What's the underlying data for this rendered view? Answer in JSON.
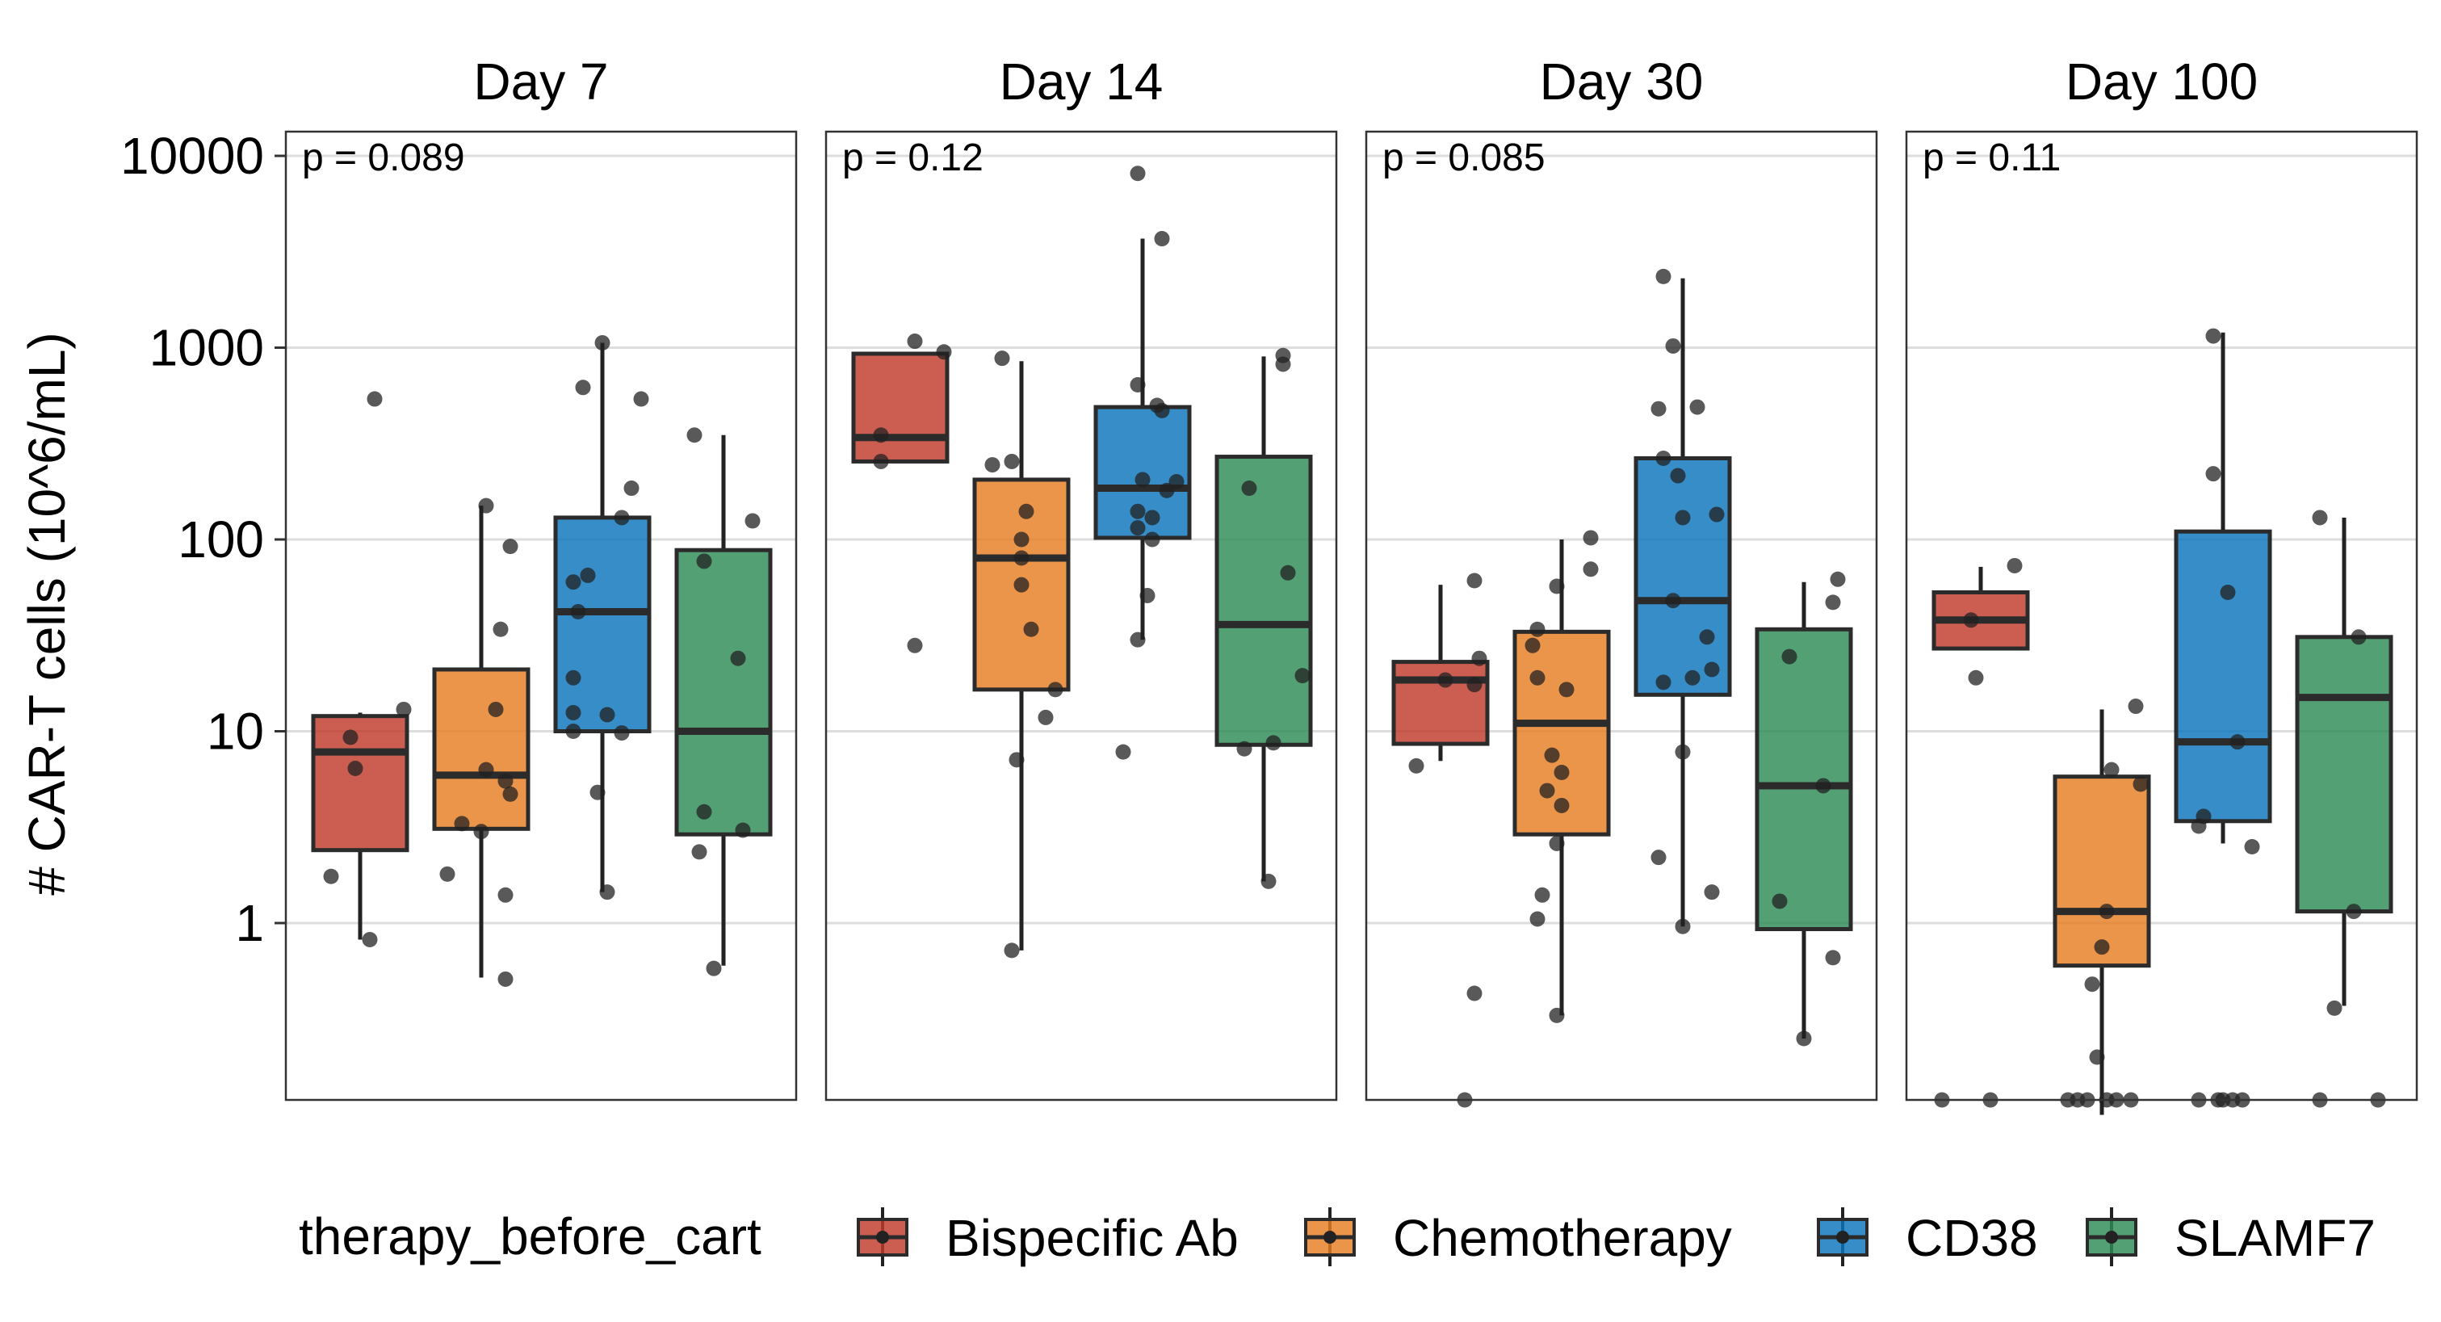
{
  "chart_data": {
    "type": "box",
    "ylabel": "# CAR-T cells (10^6/mL)",
    "yscale": "log10",
    "ylim": [
      0.1,
      15000
    ],
    "yticks": [
      1,
      10,
      100,
      1000,
      10000
    ],
    "ytick_labels": [
      "1",
      "10",
      "100",
      "1000",
      "10000"
    ],
    "grid": true,
    "legend": {
      "title": "therapy_before_cart",
      "position": "bottom",
      "entries": [
        "Bispecific Ab",
        "Chemotherapy",
        "CD38",
        "SLAMF7"
      ]
    },
    "colors": {
      "Bispecific Ab": "#C0392B",
      "Chemotherapy": "#E67E22",
      "CD38": "#0A74BB",
      "SLAMF7": "#2E8B57"
    },
    "groups": [
      "Bispecific Ab",
      "Chemotherapy",
      "CD38",
      "SLAMF7"
    ],
    "panels": [
      {
        "title": "Day 7",
        "p_label": "p = 0.089",
        "boxes": [
          {
            "group": "Bispecific Ab",
            "q1": 2.4,
            "median": 7.8,
            "q3": 12,
            "whisker_low": 0.82,
            "whisker_high": 12.5,
            "points": [
              {
                "x": 0.9,
                "y": 13
              },
              {
                "x": -0.2,
                "y": 9.3
              },
              {
                "x": -0.1,
                "y": 6.4
              },
              {
                "x": -0.6,
                "y": 1.75
              },
              {
                "x": 0.2,
                "y": 0.82
              },
              {
                "x": 0.3,
                "y": 540
              }
            ]
          },
          {
            "group": "Chemotherapy",
            "q1": 3.1,
            "median": 5.9,
            "q3": 21,
            "whisker_low": 0.52,
            "whisker_high": 150,
            "points": [
              {
                "x": 0.1,
                "y": 150
              },
              {
                "x": 0.6,
                "y": 92
              },
              {
                "x": 0.4,
                "y": 34
              },
              {
                "x": 0.3,
                "y": 13
              },
              {
                "x": 0.1,
                "y": 6.3
              },
              {
                "x": 0.5,
                "y": 5.5
              },
              {
                "x": 0.6,
                "y": 4.7
              },
              {
                "x": -0.4,
                "y": 3.3
              },
              {
                "x": 0.0,
                "y": 3.0
              },
              {
                "x": -0.7,
                "y": 1.8
              },
              {
                "x": 0.5,
                "y": 1.4
              },
              {
                "x": 0.5,
                "y": 0.51
              }
            ]
          },
          {
            "group": "CD38",
            "q1": 10,
            "median": 42,
            "q3": 130,
            "whisker_low": 1.45,
            "whisker_high": 1060,
            "points": [
              {
                "x": 0.0,
                "y": 1060
              },
              {
                "x": -0.4,
                "y": 620
              },
              {
                "x": 0.8,
                "y": 540
              },
              {
                "x": 0.6,
                "y": 185
              },
              {
                "x": 0.4,
                "y": 130
              },
              {
                "x": -0.3,
                "y": 65
              },
              {
                "x": -0.6,
                "y": 60
              },
              {
                "x": -0.5,
                "y": 42
              },
              {
                "x": -0.6,
                "y": 19
              },
              {
                "x": -0.6,
                "y": 12.5
              },
              {
                "x": 0.1,
                "y": 12.2
              },
              {
                "x": -0.6,
                "y": 10
              },
              {
                "x": 0.4,
                "y": 9.8
              },
              {
                "x": -0.1,
                "y": 4.8
              },
              {
                "x": 0.1,
                "y": 1.45
              }
            ]
          },
          {
            "group": "SLAMF7",
            "q1": 2.9,
            "median": 10,
            "q3": 88,
            "whisker_low": 0.6,
            "whisker_high": 350,
            "points": [
              {
                "x": -0.6,
                "y": 350
              },
              {
                "x": 0.6,
                "y": 125
              },
              {
                "x": -0.4,
                "y": 77
              },
              {
                "x": 0.3,
                "y": 24
              },
              {
                "x": -0.4,
                "y": 3.8
              },
              {
                "x": 0.4,
                "y": 3.05
              },
              {
                "x": -0.5,
                "y": 2.35
              },
              {
                "x": -0.2,
                "y": 0.58
              }
            ]
          }
        ]
      },
      {
        "title": "Day 14",
        "p_label": "p = 0.12",
        "boxes": [
          {
            "group": "Bispecific Ab",
            "q1": 255,
            "median": 340,
            "q3": 930,
            "whisker_low": 255,
            "whisker_high": 930,
            "points": [
              {
                "x": 0.3,
                "y": 1080
              },
              {
                "x": 0.9,
                "y": 950
              },
              {
                "x": -0.4,
                "y": 350
              },
              {
                "x": -0.4,
                "y": 255
              },
              {
                "x": 0.3,
                "y": 28
              }
            ]
          },
          {
            "group": "Chemotherapy",
            "q1": 16.5,
            "median": 80,
            "q3": 205,
            "whisker_low": 0.72,
            "whisker_high": 850,
            "points": [
              {
                "x": -0.4,
                "y": 880
              },
              {
                "x": -0.6,
                "y": 245
              },
              {
                "x": -0.2,
                "y": 255
              },
              {
                "x": 0.1,
                "y": 140
              },
              {
                "x": 0.0,
                "y": 100
              },
              {
                "x": 0.0,
                "y": 80
              },
              {
                "x": 0.0,
                "y": 58
              },
              {
                "x": 0.2,
                "y": 34
              },
              {
                "x": 0.7,
                "y": 16.5
              },
              {
                "x": 0.5,
                "y": 11.8
              },
              {
                "x": -0.1,
                "y": 7.1
              },
              {
                "x": -0.2,
                "y": 0.72
              }
            ]
          },
          {
            "group": "CD38",
            "q1": 102,
            "median": 185,
            "q3": 490,
            "whisker_low": 30,
            "whisker_high": 3700,
            "points": [
              {
                "x": -0.1,
                "y": 8100
              },
              {
                "x": 0.4,
                "y": 3700
              },
              {
                "x": -0.1,
                "y": 640
              },
              {
                "x": 0.3,
                "y": 500
              },
              {
                "x": 0.4,
                "y": 470
              },
              {
                "x": 0.0,
                "y": 205
              },
              {
                "x": 0.7,
                "y": 200
              },
              {
                "x": 0.5,
                "y": 180
              },
              {
                "x": -0.1,
                "y": 140
              },
              {
                "x": 0.2,
                "y": 130
              },
              {
                "x": -0.1,
                "y": 115
              },
              {
                "x": 0.2,
                "y": 100
              },
              {
                "x": 0.1,
                "y": 51
              },
              {
                "x": -0.1,
                "y": 30
              },
              {
                "x": -0.4,
                "y": 7.8
              }
            ]
          },
          {
            "group": "SLAMF7",
            "q1": 8.5,
            "median": 36,
            "q3": 270,
            "whisker_low": 1.65,
            "whisker_high": 900,
            "points": [
              {
                "x": 0.4,
                "y": 910
              },
              {
                "x": 0.4,
                "y": 820
              },
              {
                "x": -0.3,
                "y": 185
              },
              {
                "x": 0.5,
                "y": 67
              },
              {
                "x": 0.8,
                "y": 19.5
              },
              {
                "x": 0.2,
                "y": 8.7
              },
              {
                "x": -0.4,
                "y": 8.1
              },
              {
                "x": 0.1,
                "y": 1.65
              }
            ]
          }
        ]
      },
      {
        "title": "Day 30",
        "p_label": "p = 0.085",
        "boxes": [
          {
            "group": "Bispecific Ab",
            "q1": 8.6,
            "median": 18.5,
            "q3": 23,
            "whisker_low": 7,
            "whisker_high": 58,
            "points": [
              {
                "x": 0.7,
                "y": 61
              },
              {
                "x": 0.8,
                "y": 24
              },
              {
                "x": 0.1,
                "y": 18.5
              },
              {
                "x": 0.7,
                "y": 17.5
              },
              {
                "x": -0.5,
                "y": 6.6
              },
              {
                "x": 0.7,
                "y": 0.43
              },
              {
                "x": 0.5,
                "y": 0.1
              }
            ]
          },
          {
            "group": "Chemotherapy",
            "q1": 2.9,
            "median": 11,
            "q3": 33,
            "whisker_low": 0.33,
            "whisker_high": 100,
            "points": [
              {
                "x": 0.6,
                "y": 102
              },
              {
                "x": 0.6,
                "y": 70
              },
              {
                "x": -0.1,
                "y": 57
              },
              {
                "x": -0.5,
                "y": 34
              },
              {
                "x": -0.6,
                "y": 28
              },
              {
                "x": -0.5,
                "y": 19
              },
              {
                "x": 0.1,
                "y": 16.5
              },
              {
                "x": -0.2,
                "y": 7.5
              },
              {
                "x": 0.0,
                "y": 6.1
              },
              {
                "x": -0.3,
                "y": 4.9
              },
              {
                "x": 0.0,
                "y": 4.1
              },
              {
                "x": -0.1,
                "y": 2.6
              },
              {
                "x": -0.4,
                "y": 1.4
              },
              {
                "x": -0.5,
                "y": 1.05
              },
              {
                "x": -0.1,
                "y": 0.33
              }
            ]
          },
          {
            "group": "CD38",
            "q1": 15.5,
            "median": 48,
            "q3": 265,
            "whisker_low": 0.96,
            "whisker_high": 2300,
            "points": [
              {
                "x": -0.4,
                "y": 2350
              },
              {
                "x": -0.2,
                "y": 1020
              },
              {
                "x": -0.5,
                "y": 480
              },
              {
                "x": 0.3,
                "y": 490
              },
              {
                "x": -0.4,
                "y": 265
              },
              {
                "x": -0.1,
                "y": 215
              },
              {
                "x": 0.0,
                "y": 130
              },
              {
                "x": 0.7,
                "y": 135
              },
              {
                "x": -0.2,
                "y": 48
              },
              {
                "x": 0.5,
                "y": 31
              },
              {
                "x": 0.6,
                "y": 21
              },
              {
                "x": 0.2,
                "y": 19
              },
              {
                "x": -0.4,
                "y": 18
              },
              {
                "x": 0.0,
                "y": 7.8
              },
              {
                "x": -0.5,
                "y": 2.2
              },
              {
                "x": 0.6,
                "y": 1.45
              },
              {
                "x": 0.0,
                "y": 0.96
              }
            ]
          },
          {
            "group": "SLAMF7",
            "q1": 0.93,
            "median": 5.2,
            "q3": 34,
            "whisker_low": 0.25,
            "whisker_high": 60,
            "points": [
              {
                "x": 0.7,
                "y": 62
              },
              {
                "x": 0.6,
                "y": 47
              },
              {
                "x": -0.3,
                "y": 24.5
              },
              {
                "x": 0.4,
                "y": 5.2
              },
              {
                "x": -0.5,
                "y": 1.3
              },
              {
                "x": 0.6,
                "y": 0.66
              },
              {
                "x": 0.0,
                "y": 0.25
              }
            ]
          }
        ]
      },
      {
        "title": "Day 100",
        "p_label": "p = 0.11",
        "boxes": [
          {
            "group": "Bispecific Ab",
            "q1": 27,
            "median": 38,
            "q3": 53,
            "whisker_low": 27,
            "whisker_high": 72,
            "points": [
              {
                "x": 0.7,
                "y": 73
              },
              {
                "x": -0.2,
                "y": 38
              },
              {
                "x": -0.1,
                "y": 19
              },
              {
                "x": -0.8,
                "y": 0.1
              },
              {
                "x": 0.2,
                "y": 0.1
              }
            ]
          },
          {
            "group": "Chemotherapy",
            "q1": 0.6,
            "median": 1.15,
            "q3": 5.8,
            "whisker_low": 0.1,
            "whisker_high": 13,
            "points": [
              {
                "x": 0.7,
                "y": 13.5
              },
              {
                "x": 0.2,
                "y": 6.3
              },
              {
                "x": 0.8,
                "y": 5.3
              },
              {
                "x": 0.1,
                "y": 1.15
              },
              {
                "x": 0.0,
                "y": 0.75
              },
              {
                "x": -0.2,
                "y": 0.48
              },
              {
                "x": -0.1,
                "y": 0.2
              },
              {
                "x": -0.7,
                "y": 0.1
              },
              {
                "x": -0.5,
                "y": 0.1
              },
              {
                "x": -0.3,
                "y": 0.1
              },
              {
                "x": 0.1,
                "y": 0.1
              },
              {
                "x": 0.3,
                "y": 0.1
              },
              {
                "x": 0.6,
                "y": 0.1
              }
            ]
          },
          {
            "group": "CD38",
            "q1": 3.4,
            "median": 8.8,
            "q3": 110,
            "whisker_low": 2.6,
            "whisker_high": 1200,
            "points": [
              {
                "x": -0.2,
                "y": 1150
              },
              {
                "x": -0.2,
                "y": 220
              },
              {
                "x": 0.1,
                "y": 53
              },
              {
                "x": 0.3,
                "y": 8.8
              },
              {
                "x": -0.4,
                "y": 3.6
              },
              {
                "x": -0.5,
                "y": 3.2
              },
              {
                "x": 0.6,
                "y": 2.5
              },
              {
                "x": -0.5,
                "y": 0.1
              },
              {
                "x": -0.1,
                "y": 0.1
              },
              {
                "x": 0.0,
                "y": 0.1
              },
              {
                "x": 0.2,
                "y": 0.1
              },
              {
                "x": 0.4,
                "y": 0.1
              }
            ]
          },
          {
            "group": "SLAMF7",
            "q1": 1.15,
            "median": 15,
            "q3": 31,
            "whisker_low": 0.37,
            "whisker_high": 130,
            "points": [
              {
                "x": -0.5,
                "y": 130
              },
              {
                "x": 0.3,
                "y": 31
              },
              {
                "x": 0.2,
                "y": 1.15
              },
              {
                "x": -0.2,
                "y": 0.36
              },
              {
                "x": -0.5,
                "y": 0.1
              },
              {
                "x": 0.7,
                "y": 0.1
              }
            ]
          }
        ]
      }
    ]
  }
}
